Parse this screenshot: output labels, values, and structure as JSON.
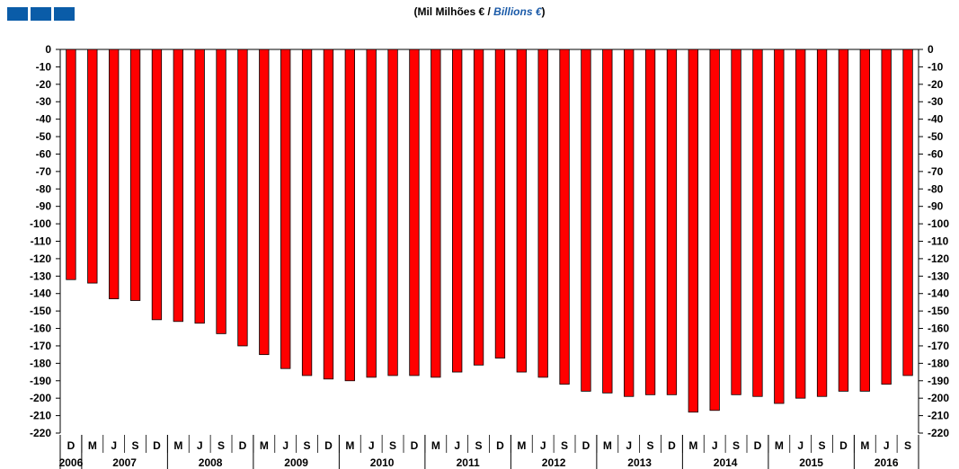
{
  "header": {
    "title_pt": "(Mil Milhões € / ",
    "title_en": "Billions €",
    "title_close": ")"
  },
  "chart_data": {
    "type": "bar",
    "title": "(Mil Milhões € / Billions €)",
    "ylim": [
      -220,
      0
    ],
    "yticks": [
      0,
      -10,
      -20,
      -30,
      -40,
      -50,
      -60,
      -70,
      -80,
      -90,
      -100,
      -110,
      -120,
      -130,
      -140,
      -150,
      -160,
      -170,
      -180,
      -190,
      -200,
      -210,
      -220
    ],
    "categories": [
      "D",
      "M",
      "J",
      "S",
      "D",
      "M",
      "J",
      "S",
      "D",
      "M",
      "J",
      "S",
      "D",
      "M",
      "J",
      "S",
      "D",
      "M",
      "J",
      "S",
      "D",
      "M",
      "J",
      "S",
      "D",
      "M",
      "J",
      "S",
      "D",
      "M",
      "J",
      "S",
      "D",
      "M",
      "J",
      "S",
      "D",
      "M",
      "J",
      "S"
    ],
    "years": [
      {
        "label": "2006",
        "start": 0,
        "span": 1
      },
      {
        "label": "2007",
        "start": 1,
        "span": 4
      },
      {
        "label": "2008",
        "start": 5,
        "span": 4
      },
      {
        "label": "2009",
        "start": 9,
        "span": 4
      },
      {
        "label": "2010",
        "start": 13,
        "span": 4
      },
      {
        "label": "2011",
        "start": 17,
        "span": 4
      },
      {
        "label": "2012",
        "start": 21,
        "span": 4
      },
      {
        "label": "2013",
        "start": 25,
        "span": 4
      },
      {
        "label": "2014",
        "start": 29,
        "span": 4
      },
      {
        "label": "2015",
        "start": 33,
        "span": 4
      },
      {
        "label": "2016",
        "start": 37,
        "span": 3
      }
    ],
    "series": [
      {
        "values": [
          -132,
          -134,
          -143,
          -144,
          -155,
          -156,
          -157,
          -163,
          -170,
          -175,
          -183,
          -187,
          -189,
          -190,
          -188,
          -187,
          -187,
          -188,
          -185,
          -181,
          -177,
          -185,
          -188,
          -192,
          -196,
          -197,
          -199,
          -198,
          -198,
          -208,
          -207,
          -198,
          -199,
          -203,
          -200,
          -199,
          -196,
          -196,
          -192,
          -187
        ]
      }
    ],
    "bar_color": "#ff0000",
    "grid": false
  }
}
